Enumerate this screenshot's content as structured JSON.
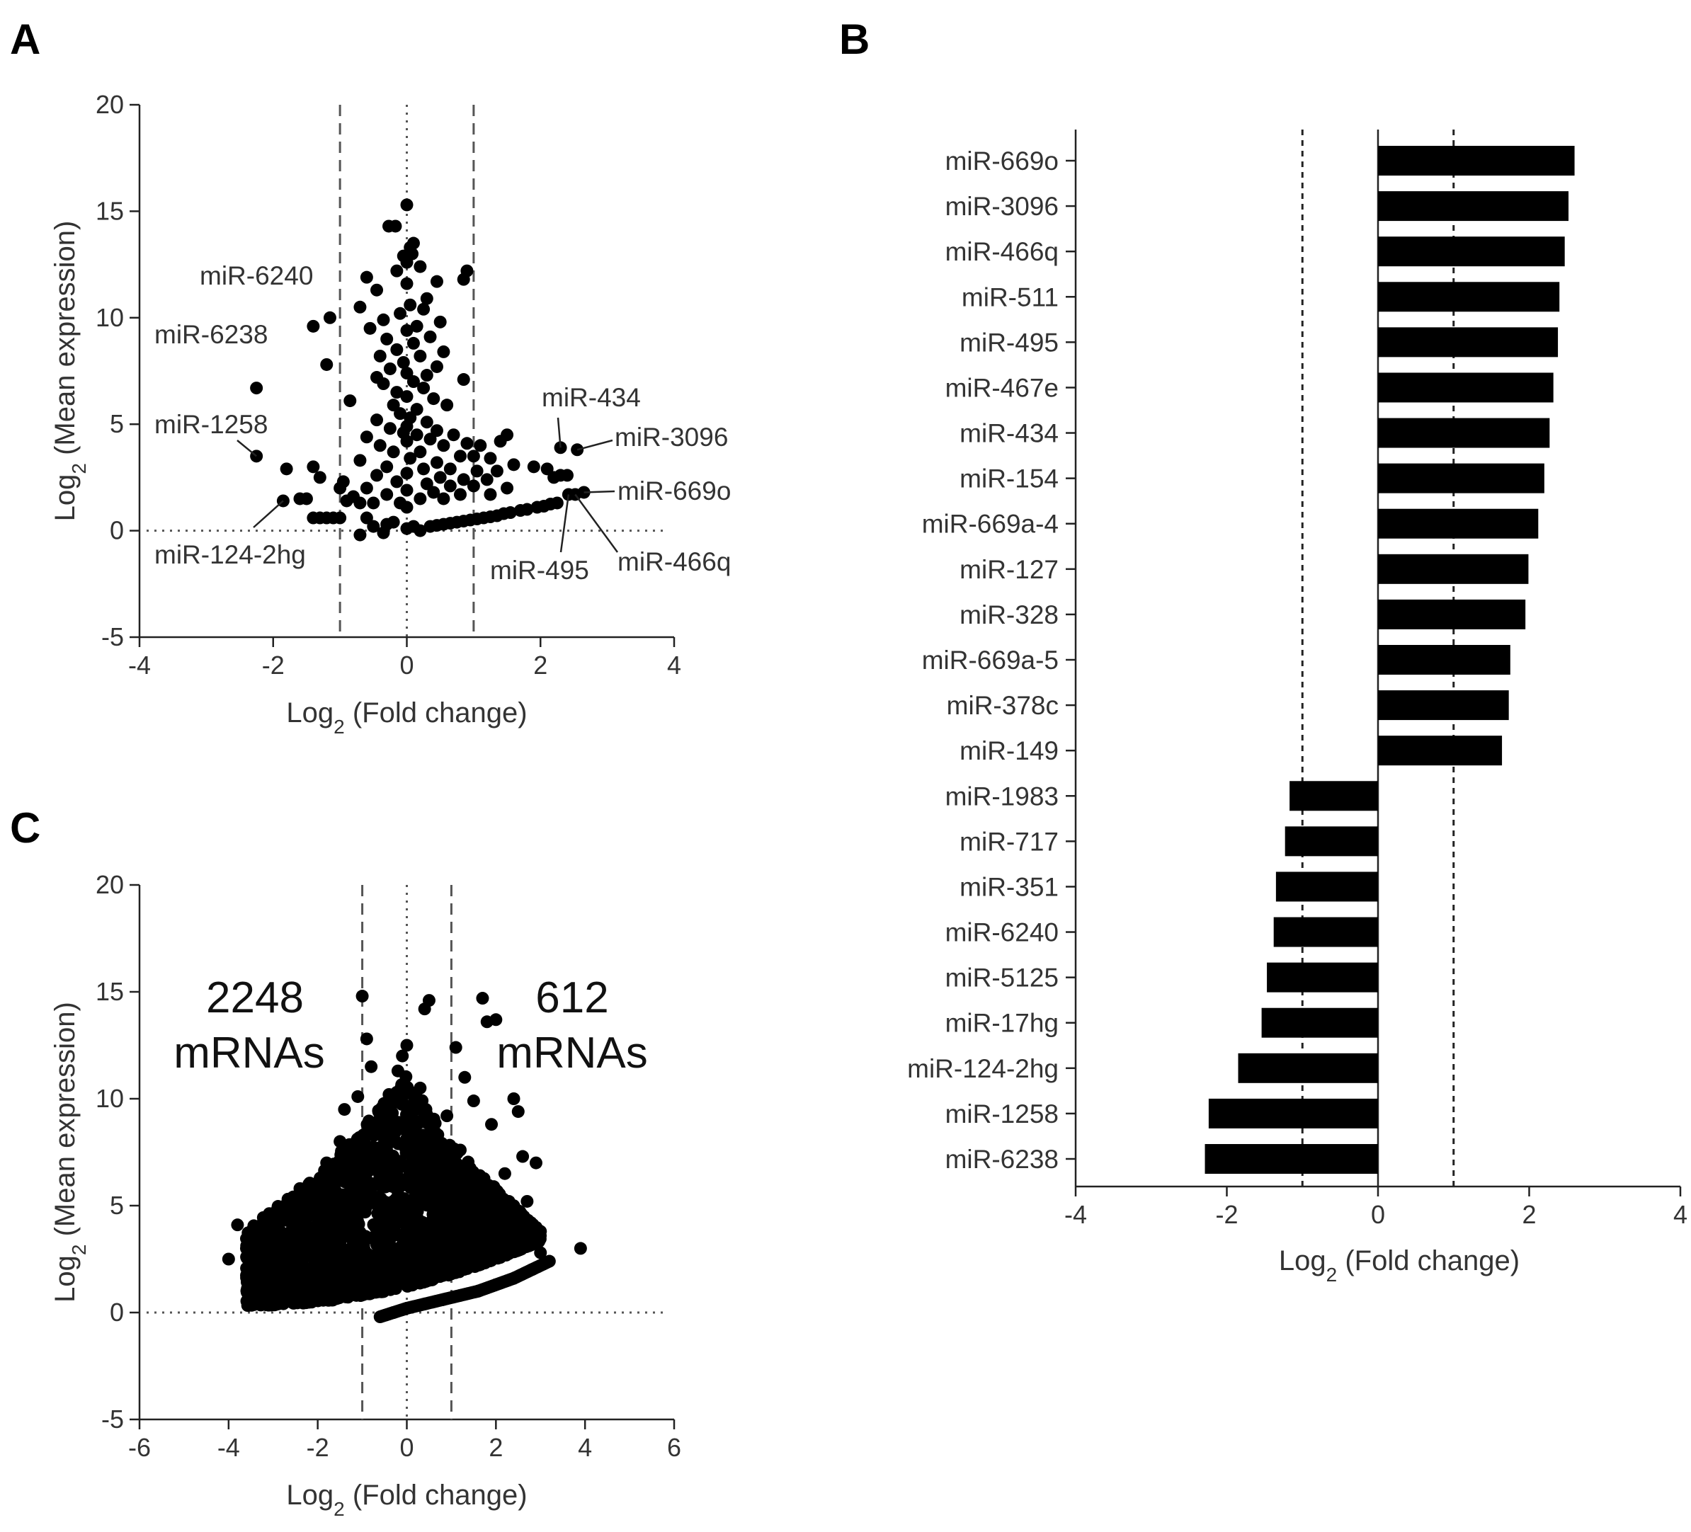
{
  "chart_data": [
    {
      "panel": "A",
      "type": "scatter",
      "title": "",
      "xlabel_main": "Log",
      "xlabel_sub": "2",
      "xlabel_rest": " (Fold change)",
      "ylabel_main": "Log",
      "ylabel_sub": "2",
      "ylabel_rest": " (Mean expression)",
      "xlim": [
        -4,
        4
      ],
      "ylim": [
        -5,
        20
      ],
      "xticks": [
        -4,
        -2,
        0,
        2,
        4
      ],
      "yticks": [
        -5,
        0,
        5,
        10,
        15,
        20
      ],
      "xtick_labels": [
        "-4",
        "-2",
        "0",
        "2",
        "4"
      ],
      "ytick_labels": [
        "-5",
        "0",
        "5",
        "10",
        "15",
        "20"
      ],
      "threshold_lines_x": [
        -1,
        1
      ],
      "reference_lines": {
        "x": 0,
        "y": 0
      },
      "annotations": [
        {
          "label": "miR-6240",
          "x": -1.35,
          "y": 9.6
        },
        {
          "label": "miR-6238",
          "x": -2.25,
          "y": 6.7
        },
        {
          "label": "miR-1258",
          "x": -2.25,
          "y": 3.5
        },
        {
          "label": "miR-124-2hg",
          "x": -1.85,
          "y": 1.4
        },
        {
          "label": "miR-434",
          "x": 2.3,
          "y": 3.9
        },
        {
          "label": "miR-3096",
          "x": 2.55,
          "y": 3.8
        },
        {
          "label": "miR-669o",
          "x": 2.65,
          "y": 1.8
        },
        {
          "label": "miR-495",
          "x": 2.42,
          "y": 1.7
        },
        {
          "label": "miR-466q",
          "x": 2.52,
          "y": 1.7
        }
      ],
      "points": [
        [
          0.0,
          15.3
        ],
        [
          -0.27,
          14.3
        ],
        [
          -0.17,
          14.3
        ],
        [
          0.05,
          13.3
        ],
        [
          0.08,
          13.0
        ],
        [
          0.1,
          13.5
        ],
        [
          0.0,
          12.6
        ],
        [
          -0.05,
          12.9
        ],
        [
          -0.15,
          12.2
        ],
        [
          0.2,
          12.4
        ],
        [
          0.85,
          11.8
        ],
        [
          0.9,
          12.2
        ],
        [
          -0.6,
          11.9
        ],
        [
          0.45,
          11.7
        ],
        [
          -0.45,
          11.3
        ],
        [
          0.0,
          11.6
        ],
        [
          -0.7,
          10.5
        ],
        [
          0.3,
          10.9
        ],
        [
          0.05,
          10.6
        ],
        [
          -0.1,
          10.2
        ],
        [
          0.25,
          10.4
        ],
        [
          -0.35,
          9.9
        ],
        [
          0.5,
          9.8
        ],
        [
          0.15,
          9.6
        ],
        [
          -0.55,
          9.5
        ],
        [
          0.0,
          9.4
        ],
        [
          -1.4,
          9.6
        ],
        [
          -1.15,
          10.0
        ],
        [
          -1.2,
          7.8
        ],
        [
          -0.3,
          9.0
        ],
        [
          0.35,
          9.1
        ],
        [
          0.1,
          8.8
        ],
        [
          -0.15,
          8.5
        ],
        [
          0.55,
          8.4
        ],
        [
          -0.4,
          8.2
        ],
        [
          0.2,
          8.2
        ],
        [
          -0.05,
          7.9
        ],
        [
          0.45,
          7.7
        ],
        [
          -0.25,
          7.6
        ],
        [
          0.0,
          7.4
        ],
        [
          -0.45,
          7.2
        ],
        [
          0.3,
          7.3
        ],
        [
          0.1,
          7.0
        ],
        [
          0.85,
          7.1
        ],
        [
          -0.35,
          6.9
        ],
        [
          0.25,
          6.7
        ],
        [
          -0.15,
          6.5
        ],
        [
          0.0,
          6.3
        ],
        [
          -0.85,
          6.1
        ],
        [
          0.4,
          6.2
        ],
        [
          -0.2,
          5.9
        ],
        [
          0.15,
          5.7
        ],
        [
          0.6,
          5.9
        ],
        [
          -0.1,
          5.5
        ],
        [
          0.05,
          5.3
        ],
        [
          -0.45,
          5.2
        ],
        [
          0.3,
          5.1
        ],
        [
          0.0,
          4.9
        ],
        [
          -0.25,
          4.8
        ],
        [
          0.45,
          4.7
        ],
        [
          -0.05,
          4.6
        ],
        [
          0.15,
          4.5
        ],
        [
          0.7,
          4.5
        ],
        [
          -0.6,
          4.4
        ],
        [
          0.35,
          4.3
        ],
        [
          0.0,
          4.2
        ],
        [
          -0.4,
          4.0
        ],
        [
          0.55,
          4.0
        ],
        [
          0.9,
          4.1
        ],
        [
          1.1,
          4.0
        ],
        [
          1.5,
          4.5
        ],
        [
          1.4,
          4.2
        ],
        [
          0.2,
          3.7
        ],
        [
          -0.2,
          3.7
        ],
        [
          0.8,
          3.5
        ],
        [
          1.0,
          3.5
        ],
        [
          1.25,
          3.4
        ],
        [
          0.05,
          3.4
        ],
        [
          -0.7,
          3.3
        ],
        [
          0.45,
          3.2
        ],
        [
          1.6,
          3.1
        ],
        [
          1.9,
          3.0
        ],
        [
          2.1,
          2.9
        ],
        [
          -0.3,
          3.0
        ],
        [
          0.25,
          2.9
        ],
        [
          0.65,
          2.9
        ],
        [
          1.05,
          2.8
        ],
        [
          1.35,
          2.8
        ],
        [
          0.0,
          2.7
        ],
        [
          -0.45,
          2.6
        ],
        [
          2.2,
          2.5
        ],
        [
          2.3,
          2.6
        ],
        [
          2.4,
          2.6
        ],
        [
          0.5,
          2.5
        ],
        [
          0.85,
          2.4
        ],
        [
          1.2,
          2.4
        ],
        [
          -0.15,
          2.3
        ],
        [
          -0.95,
          2.3
        ],
        [
          -1.3,
          2.5
        ],
        [
          0.3,
          2.2
        ],
        [
          0.65,
          2.1
        ],
        [
          1.0,
          2.1
        ],
        [
          1.5,
          2.0
        ],
        [
          -0.6,
          2.0
        ],
        [
          -1.0,
          2.0
        ],
        [
          0.0,
          1.9
        ],
        [
          0.4,
          1.8
        ],
        [
          0.8,
          1.7
        ],
        [
          1.25,
          1.7
        ],
        [
          -0.3,
          1.7
        ],
        [
          0.2,
          1.5
        ],
        [
          0.55,
          1.5
        ],
        [
          -0.8,
          1.6
        ],
        [
          -0.5,
          1.3
        ],
        [
          -0.1,
          1.3
        ],
        [
          -1.6,
          1.5
        ],
        [
          -1.5,
          1.5
        ],
        [
          -0.9,
          1.4
        ],
        [
          -0.7,
          1.3
        ],
        [
          0.0,
          1.1
        ],
        [
          -1.4,
          0.6
        ],
        [
          -1.3,
          0.6
        ],
        [
          -1.2,
          0.6
        ],
        [
          -1.1,
          0.6
        ],
        [
          -1.0,
          0.6
        ],
        [
          -0.6,
          0.6
        ],
        [
          -0.5,
          0.2
        ],
        [
          -0.3,
          0.3
        ],
        [
          -0.2,
          0.4
        ],
        [
          -0.7,
          -0.2
        ],
        [
          -0.35,
          -0.1
        ],
        [
          0.0,
          0.1
        ],
        [
          0.1,
          0.2
        ],
        [
          0.2,
          0.0
        ],
        [
          0.35,
          0.2
        ],
        [
          0.45,
          0.25
        ],
        [
          0.55,
          0.3
        ],
        [
          0.65,
          0.35
        ],
        [
          0.75,
          0.4
        ],
        [
          0.85,
          0.45
        ],
        [
          0.95,
          0.5
        ],
        [
          1.05,
          0.55
        ],
        [
          1.15,
          0.6
        ],
        [
          1.25,
          0.65
        ],
        [
          1.35,
          0.7
        ],
        [
          1.45,
          0.8
        ],
        [
          1.55,
          0.85
        ],
        [
          1.7,
          0.95
        ],
        [
          1.8,
          1.0
        ],
        [
          1.95,
          1.1
        ],
        [
          2.05,
          1.15
        ],
        [
          2.15,
          1.25
        ],
        [
          2.25,
          1.3
        ],
        [
          -1.8,
          2.9
        ],
        [
          -1.4,
          3.0
        ],
        [
          -2.25,
          6.7
        ],
        [
          -2.25,
          3.5
        ],
        [
          -1.85,
          1.4
        ],
        [
          2.3,
          3.9
        ],
        [
          2.55,
          3.8
        ],
        [
          2.65,
          1.8
        ],
        [
          2.42,
          1.7
        ],
        [
          2.52,
          1.7
        ]
      ]
    },
    {
      "panel": "B",
      "type": "bar",
      "orientation": "horizontal",
      "title": "",
      "xlabel_main": "Log",
      "xlabel_sub": "2",
      "xlabel_rest": " (Fold change)",
      "xlim": [
        -4,
        4
      ],
      "xticks": [
        -4,
        -2,
        0,
        2,
        4
      ],
      "xtick_labels": [
        "-4",
        "-2",
        "0",
        "2",
        "4"
      ],
      "threshold_lines_x": [
        -1,
        1
      ],
      "categories": [
        "miR-669o",
        "miR-3096",
        "miR-466q",
        "miR-511",
        "miR-495",
        "miR-467e",
        "miR-434",
        "miR-154",
        "miR-669a-4",
        "miR-127",
        "miR-328",
        "miR-669a-5",
        "miR-378c",
        "miR-149",
        "miR-1983",
        "miR-717",
        "miR-351",
        "miR-6240",
        "miR-5125",
        "miR-17hg",
        "miR-124-2hg",
        "miR-1258",
        "miR-6238"
      ],
      "values": [
        2.6,
        2.52,
        2.47,
        2.4,
        2.38,
        2.32,
        2.27,
        2.2,
        2.12,
        1.99,
        1.95,
        1.75,
        1.73,
        1.64,
        -1.17,
        -1.23,
        -1.35,
        -1.38,
        -1.47,
        -1.54,
        -1.85,
        -2.24,
        -2.29
      ]
    },
    {
      "panel": "C",
      "type": "scatter",
      "title": "",
      "xlabel_main": "Log",
      "xlabel_sub": "2",
      "xlabel_rest": " (Fold change)",
      "ylabel_main": "Log",
      "ylabel_sub": "2",
      "ylabel_rest": " (Mean expression)",
      "xlim": [
        -6,
        6
      ],
      "ylim": [
        -5,
        20
      ],
      "xticks": [
        -6,
        -4,
        -2,
        0,
        2,
        4,
        6
      ],
      "yticks": [
        -5,
        0,
        5,
        10,
        15,
        20
      ],
      "xtick_labels": [
        "-6",
        "-4",
        "-2",
        "0",
        "2",
        "4",
        "6"
      ],
      "ytick_labels": [
        "-5",
        "0",
        "5",
        "10",
        "15",
        "20"
      ],
      "threshold_lines_x": [
        -1,
        1
      ],
      "reference_lines": {
        "x": 0,
        "y": 0
      },
      "counts": [
        {
          "number": "2248",
          "unit": "mRNAs",
          "side": "left"
        },
        {
          "number": "612",
          "unit": "mRNAs",
          "side": "right"
        }
      ],
      "representative_points": [
        [
          -4.0,
          2.5
        ],
        [
          -3.8,
          4.1
        ],
        [
          -3.6,
          3.0
        ],
        [
          -3.5,
          2.3
        ],
        [
          -3.4,
          3.4
        ],
        [
          -3.2,
          2.8
        ],
        [
          -3.0,
          4.0
        ],
        [
          -2.9,
          2.5
        ],
        [
          -2.8,
          3.5
        ],
        [
          -2.7,
          5.0
        ],
        [
          -2.6,
          2.2
        ],
        [
          -2.5,
          3.0
        ],
        [
          -2.4,
          5.8
        ],
        [
          -2.3,
          4.3
        ],
        [
          -2.2,
          6.0
        ],
        [
          -2.0,
          3.3
        ],
        [
          -1.9,
          5.5
        ],
        [
          -1.8,
          7.0
        ],
        [
          -1.7,
          2.6
        ],
        [
          -1.6,
          4.6
        ],
        [
          -1.5,
          8.0
        ],
        [
          -1.4,
          9.5
        ],
        [
          -1.3,
          6.2
        ],
        [
          -1.2,
          3.5
        ],
        [
          -1.1,
          10.1
        ],
        [
          -1.0,
          7.8
        ],
        [
          -0.9,
          12.8
        ],
        [
          -0.8,
          11.5
        ],
        [
          -0.7,
          5.4
        ],
        [
          -0.6,
          9.1
        ],
        [
          -0.5,
          6.7
        ],
        [
          -0.4,
          10.2
        ],
        [
          -0.3,
          8.5
        ],
        [
          -0.2,
          11.3
        ],
        [
          -0.1,
          12.0
        ],
        [
          0.0,
          12.5
        ],
        [
          0.1,
          9.7
        ],
        [
          0.2,
          7.2
        ],
        [
          0.3,
          10.5
        ],
        [
          0.5,
          14.6
        ],
        [
          0.6,
          8.3
        ],
        [
          0.8,
          6.1
        ],
        [
          0.9,
          9.2
        ],
        [
          1.0,
          4.9
        ],
        [
          1.1,
          12.4
        ],
        [
          1.2,
          7.6
        ],
        [
          1.3,
          11.0
        ],
        [
          1.4,
          3.8
        ],
        [
          1.5,
          9.9
        ],
        [
          1.6,
          5.7
        ],
        [
          1.7,
          14.7
        ],
        [
          1.8,
          13.6
        ],
        [
          1.9,
          8.8
        ],
        [
          2.0,
          13.7
        ],
        [
          2.1,
          3.9
        ],
        [
          2.2,
          6.5
        ],
        [
          2.3,
          4.5
        ],
        [
          2.4,
          10.0
        ],
        [
          2.5,
          9.4
        ],
        [
          2.6,
          7.3
        ],
        [
          2.7,
          5.2
        ],
        [
          2.8,
          3.3
        ],
        [
          2.9,
          7.0
        ],
        [
          3.0,
          2.8
        ],
        [
          3.9,
          3.0
        ],
        [
          -1.0,
          14.8
        ],
        [
          0.4,
          14.2
        ]
      ],
      "lower_arc": [
        [
          -0.6,
          -0.2
        ],
        [
          -0.3,
          0.0
        ],
        [
          0.0,
          0.2
        ],
        [
          0.4,
          0.4
        ],
        [
          0.8,
          0.6
        ],
        [
          1.2,
          0.8
        ],
        [
          1.6,
          1.0
        ],
        [
          2.0,
          1.3
        ],
        [
          2.4,
          1.6
        ],
        [
          2.8,
          2.0
        ],
        [
          3.2,
          2.4
        ]
      ]
    }
  ],
  "panel_letters": {
    "a": "A",
    "b": "B",
    "c": "C"
  }
}
